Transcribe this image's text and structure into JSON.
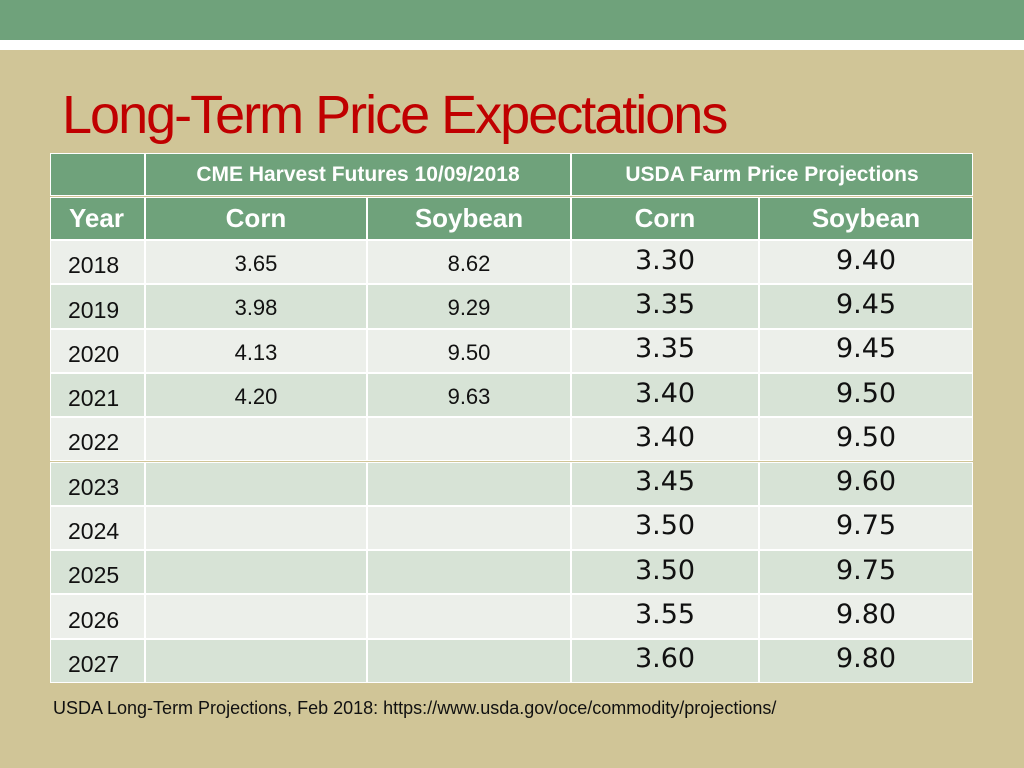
{
  "header": {
    "title": "Long-Term Price Expectations"
  },
  "table": {
    "group_headers": [
      "CME Harvest Futures 10/09/2018",
      "USDA Farm Price Projections"
    ],
    "columns": [
      "Year",
      "Corn",
      "Soybean",
      "Corn",
      "Soybean"
    ],
    "rows": [
      [
        "2018",
        "3.65",
        "8.62",
        "3.30",
        "9.40"
      ],
      [
        "2019",
        "3.98",
        "9.29",
        "3.35",
        "9.45"
      ],
      [
        "2020",
        "4.13",
        "9.50",
        "3.35",
        "9.45"
      ],
      [
        "2021",
        "4.20",
        "9.63",
        "3.40",
        "9.50"
      ],
      [
        "2022",
        null,
        null,
        "3.40",
        "9.50"
      ],
      [
        "2023",
        null,
        null,
        "3.45",
        "9.60"
      ],
      [
        "2024",
        null,
        null,
        "3.50",
        "9.75"
      ],
      [
        "2025",
        null,
        null,
        "3.50",
        "9.75"
      ],
      [
        "2026",
        null,
        null,
        "3.55",
        "9.80"
      ],
      [
        "2027",
        null,
        null,
        "3.60",
        "9.80"
      ]
    ]
  },
  "footer": {
    "source": "USDA Long-Term Projections, Feb 2018: https://www.usda.gov/oce/commodity/projections/"
  }
}
